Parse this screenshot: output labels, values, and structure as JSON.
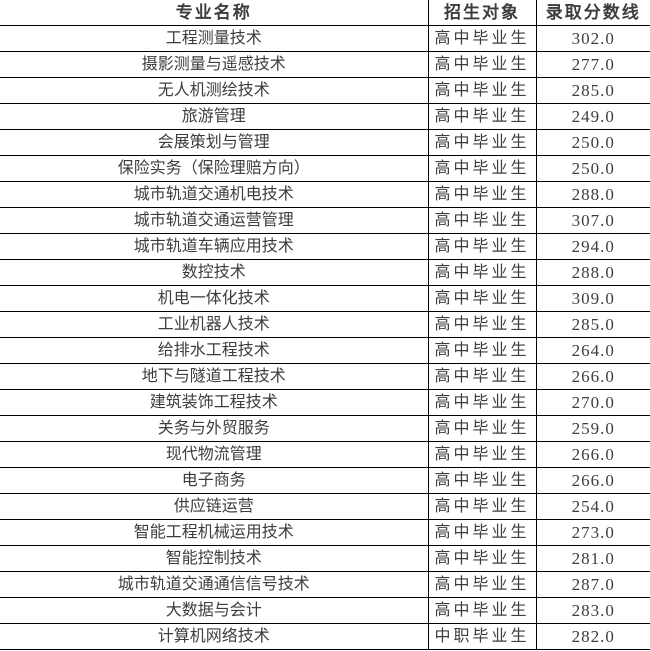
{
  "table": {
    "headers": [
      "专业名称",
      "招生对象",
      "录取分数线"
    ],
    "rows": [
      {
        "major": "工程测量技术",
        "target": "高中毕业生",
        "score": "302.0"
      },
      {
        "major": "摄影测量与遥感技术",
        "target": "高中毕业生",
        "score": "277.0"
      },
      {
        "major": "无人机测绘技术",
        "target": "高中毕业生",
        "score": "285.0"
      },
      {
        "major": "旅游管理",
        "target": "高中毕业生",
        "score": "249.0"
      },
      {
        "major": "会展策划与管理",
        "target": "高中毕业生",
        "score": "250.0"
      },
      {
        "major": "保险实务（保险理赔方向）",
        "target": "高中毕业生",
        "score": "250.0"
      },
      {
        "major": "城市轨道交通机电技术",
        "target": "高中毕业生",
        "score": "288.0"
      },
      {
        "major": "城市轨道交通运营管理",
        "target": "高中毕业生",
        "score": "307.0"
      },
      {
        "major": "城市轨道车辆应用技术",
        "target": "高中毕业生",
        "score": "294.0"
      },
      {
        "major": "数控技术",
        "target": "高中毕业生",
        "score": "288.0"
      },
      {
        "major": "机电一体化技术",
        "target": "高中毕业生",
        "score": "309.0"
      },
      {
        "major": "工业机器人技术",
        "target": "高中毕业生",
        "score": "285.0"
      },
      {
        "major": "给排水工程技术",
        "target": "高中毕业生",
        "score": "264.0"
      },
      {
        "major": "地下与隧道工程技术",
        "target": "高中毕业生",
        "score": "266.0"
      },
      {
        "major": "建筑装饰工程技术",
        "target": "高中毕业生",
        "score": "270.0"
      },
      {
        "major": "关务与外贸服务",
        "target": "高中毕业生",
        "score": "259.0"
      },
      {
        "major": "现代物流管理",
        "target": "高中毕业生",
        "score": "266.0"
      },
      {
        "major": "电子商务",
        "target": "高中毕业生",
        "score": "266.0"
      },
      {
        "major": "供应链运营",
        "target": "高中毕业生",
        "score": "254.0"
      },
      {
        "major": "智能工程机械运用技术",
        "target": "高中毕业生",
        "score": "273.0"
      },
      {
        "major": "智能控制技术",
        "target": "高中毕业生",
        "score": "281.0"
      },
      {
        "major": "城市轨道交通通信信号技术",
        "target": "高中毕业生",
        "score": "287.0"
      },
      {
        "major": "大数据与会计",
        "target": "高中毕业生",
        "score": "283.0"
      },
      {
        "major": "计算机网络技术",
        "target": "中职毕业生",
        "score": "282.0"
      }
    ],
    "colors": {
      "border": "#000000",
      "text": "#3d3d3d",
      "background": "#ffffff"
    }
  }
}
